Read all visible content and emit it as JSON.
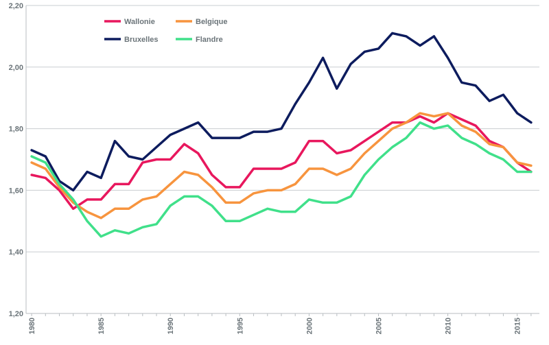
{
  "chart_data": {
    "type": "line",
    "title": "",
    "xlabel": "",
    "ylabel": "",
    "ylim": [
      1.2,
      2.2
    ],
    "xlim": [
      1980,
      2016
    ],
    "y_ticks": [
      1.2,
      1.4,
      1.6,
      1.8,
      2.0,
      2.2
    ],
    "y_tick_labels": [
      "1,20",
      "1,40",
      "1,60",
      "1,80",
      "2,00",
      "2,20"
    ],
    "x_ticks": [
      1980,
      1985,
      1990,
      1995,
      2000,
      2005,
      2010,
      2015
    ],
    "x_tick_labels": [
      "1980",
      "1985",
      "1990",
      "1995",
      "2000",
      "2005",
      "2010",
      "2015"
    ],
    "grid": "horizontal",
    "legend_position": "top-left",
    "x": [
      1980,
      1981,
      1982,
      1983,
      1984,
      1985,
      1986,
      1987,
      1988,
      1989,
      1990,
      1991,
      1992,
      1993,
      1994,
      1995,
      1996,
      1997,
      1998,
      1999,
      2000,
      2001,
      2002,
      2003,
      2004,
      2005,
      2006,
      2007,
      2008,
      2009,
      2010,
      2011,
      2012,
      2013,
      2014,
      2015,
      2016
    ],
    "series": [
      {
        "name": "Wallonie",
        "color": "#e8175d",
        "values": [
          1.65,
          1.64,
          1.6,
          1.54,
          1.57,
          1.57,
          1.62,
          1.62,
          1.69,
          1.7,
          1.7,
          1.75,
          1.72,
          1.65,
          1.61,
          1.61,
          1.67,
          1.67,
          1.67,
          1.69,
          1.76,
          1.76,
          1.72,
          1.73,
          1.76,
          1.79,
          1.82,
          1.82,
          1.84,
          1.82,
          1.85,
          1.83,
          1.81,
          1.76,
          1.74,
          1.69,
          1.66
        ]
      },
      {
        "name": "Belgique",
        "color": "#f7943e",
        "values": [
          1.69,
          1.67,
          1.61,
          1.56,
          1.53,
          1.51,
          1.54,
          1.54,
          1.57,
          1.58,
          1.62,
          1.66,
          1.65,
          1.61,
          1.56,
          1.56,
          1.59,
          1.6,
          1.6,
          1.62,
          1.67,
          1.67,
          1.65,
          1.67,
          1.72,
          1.76,
          1.8,
          1.82,
          1.85,
          1.84,
          1.85,
          1.81,
          1.79,
          1.75,
          1.74,
          1.69,
          1.68
        ]
      },
      {
        "name": "Bruxelles",
        "color": "#0d1c5e",
        "values": [
          1.73,
          1.71,
          1.63,
          1.6,
          1.66,
          1.64,
          1.76,
          1.71,
          1.7,
          1.74,
          1.78,
          1.8,
          1.82,
          1.77,
          1.77,
          1.77,
          1.79,
          1.79,
          1.8,
          1.88,
          1.95,
          2.03,
          1.93,
          2.01,
          2.05,
          2.06,
          2.11,
          2.1,
          2.07,
          2.1,
          2.03,
          1.95,
          1.94,
          1.89,
          1.91,
          1.85,
          1.82
        ]
      },
      {
        "name": "Flandre",
        "color": "#40e08a",
        "values": [
          1.71,
          1.69,
          1.62,
          1.57,
          1.5,
          1.45,
          1.47,
          1.46,
          1.48,
          1.49,
          1.55,
          1.58,
          1.58,
          1.55,
          1.5,
          1.5,
          1.52,
          1.54,
          1.53,
          1.53,
          1.57,
          1.56,
          1.56,
          1.58,
          1.65,
          1.7,
          1.74,
          1.77,
          1.82,
          1.8,
          1.81,
          1.77,
          1.75,
          1.72,
          1.7,
          1.66,
          1.66
        ]
      }
    ],
    "legend": {
      "rows": [
        [
          "Wallonie",
          "Belgique"
        ],
        [
          "Bruxelles",
          "Flandre"
        ]
      ]
    }
  }
}
